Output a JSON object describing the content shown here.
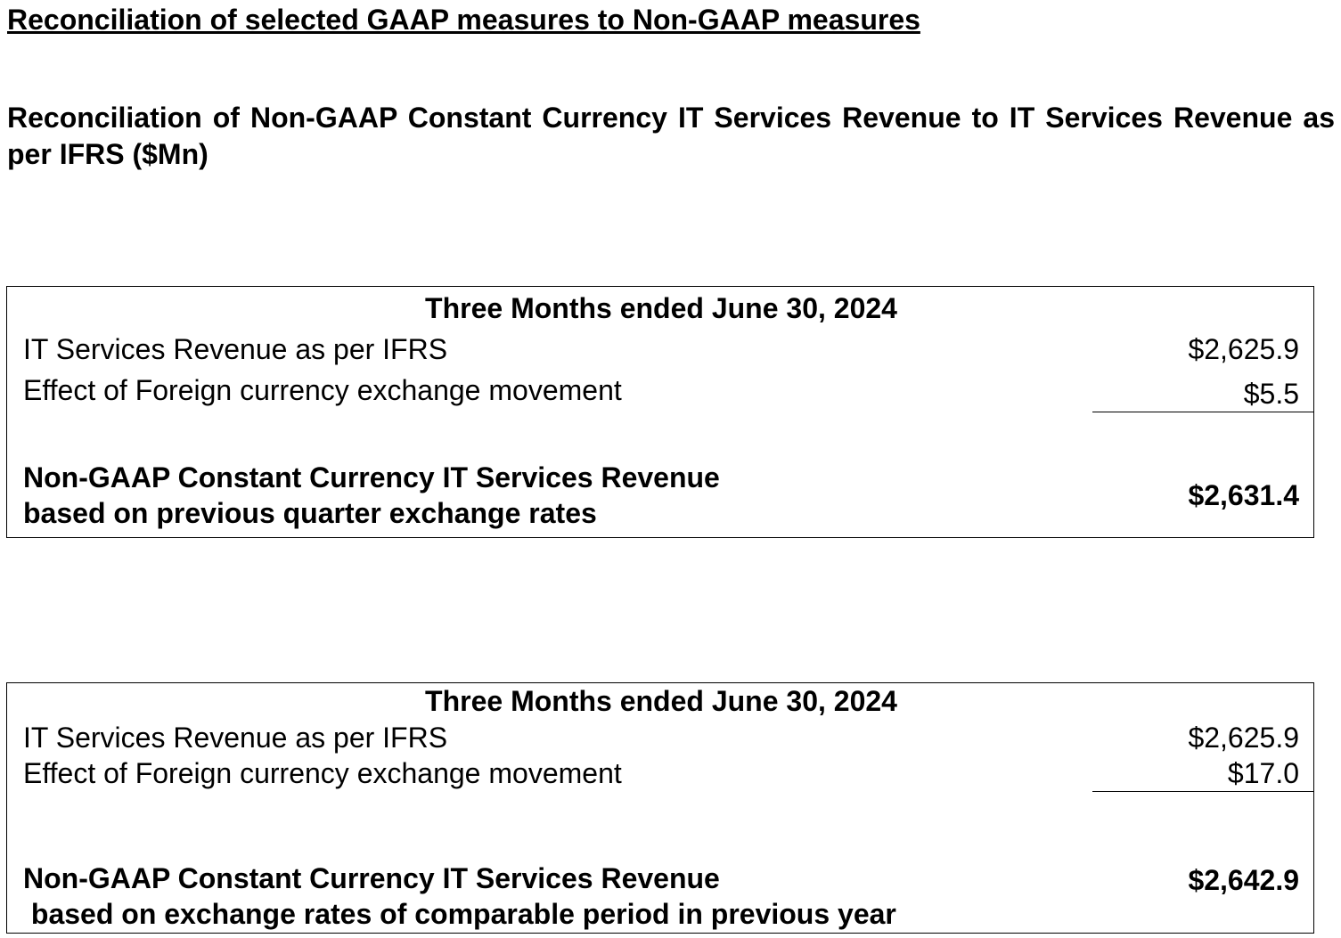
{
  "heading": "Reconciliation of selected GAAP measures to Non-GAAP measures",
  "subheading": "Reconciliation of Non-GAAP Constant Currency IT Services Revenue to IT Services Revenue as per IFRS ($Mn)",
  "tables": [
    {
      "period": "Three Months ended June 30, 2024",
      "rows": [
        {
          "label": "IT Services Revenue as per IFRS",
          "value": "$2,625.9"
        },
        {
          "label": "Effect of Foreign currency exchange movement",
          "value": "$5.5"
        }
      ],
      "total": {
        "label_line1": "Non-GAAP Constant Currency IT Services Revenue",
        "label_line2": "based on previous quarter exchange rates",
        "value": "$2,631.4"
      }
    },
    {
      "period": "Three Months ended June 30, 2024",
      "rows": [
        {
          "label": "IT Services Revenue as per IFRS",
          "value": "$2,625.9"
        },
        {
          "label": "Effect of Foreign currency exchange movement",
          "value": "$17.0"
        }
      ],
      "total": {
        "label_line1": "Non-GAAP Constant Currency IT Services Revenue",
        "label_line2": " based on exchange rates of comparable period in previous year",
        "value": "$2,642.9"
      }
    }
  ]
}
